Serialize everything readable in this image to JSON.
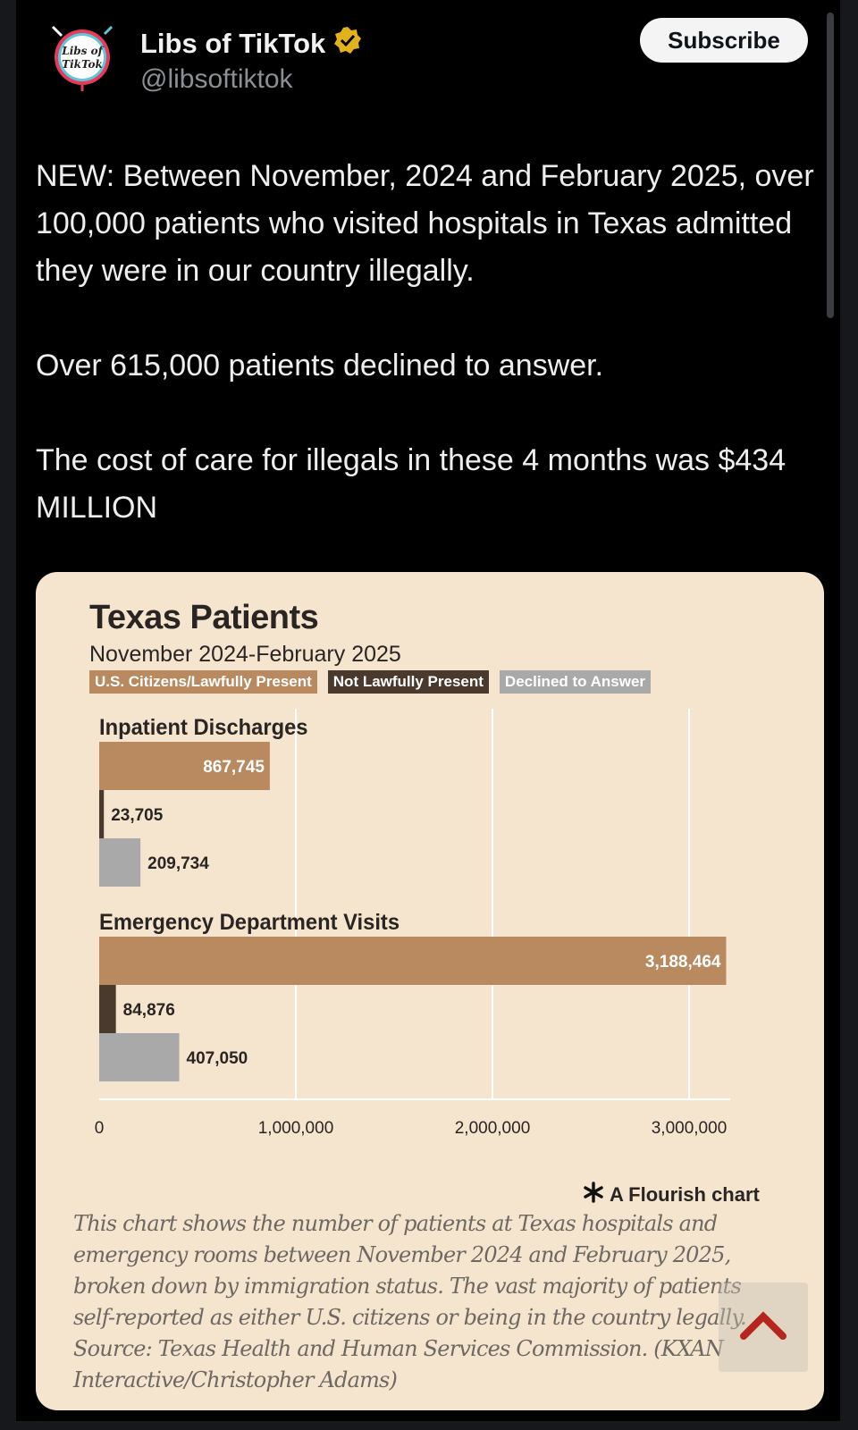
{
  "post": {
    "author_name": "Libs of TikTok",
    "handle": "@libsoftiktok",
    "avatar_text_line1": "Libs of",
    "avatar_text_line2": "TikTok",
    "subscribe_label": "Subscribe",
    "paragraphs": [
      "NEW: Between November, 2024 and February 2025, over 100,000 patients who visited hospitals in Texas admitted they were in our country illegally.",
      "Over 615,000 patients declined to answer.",
      "The cost of care for illegals in these 4 months was $434 MILLION"
    ]
  },
  "chart_meta": {
    "flourish_label": "A Flourish chart",
    "caption": "This chart shows the number of patients at Texas hospitals and emergency rooms between November 2024 and February 2025, broken down by immigration status. The vast majority of patients self-reported as either U.S. citizens or being in the country legally. Source: Texas Health and Human Services Commission. (KXAN Interactive/Christopher Adams)"
  },
  "chart_data": {
    "type": "bar",
    "orientation": "horizontal",
    "title": "Texas Patients",
    "subtitle": "November 2024-February 2025",
    "legend": [
      "U.S. Citizens/Lawfully Present",
      "Not Lawfully Present",
      "Declined to Answer"
    ],
    "colors": [
      "#b98a60",
      "#4a3a2e",
      "#a9a9a9"
    ],
    "groups": [
      {
        "name": "Inpatient Discharges",
        "labels": [
          "867,745",
          "23,705",
          "209,734"
        ],
        "values": [
          867745,
          23705,
          209734
        ]
      },
      {
        "name": "Emergency Department Visits",
        "labels": [
          "3,188,464",
          "84,876",
          "407,050"
        ],
        "values": [
          3188464,
          84876,
          407050
        ]
      }
    ],
    "xlim": [
      0,
      3200000
    ],
    "xticks": [
      0,
      1000000,
      2000000,
      3000000
    ],
    "xtick_labels": [
      "0",
      "1,000,000",
      "2,000,000",
      "3,000,000"
    ]
  }
}
